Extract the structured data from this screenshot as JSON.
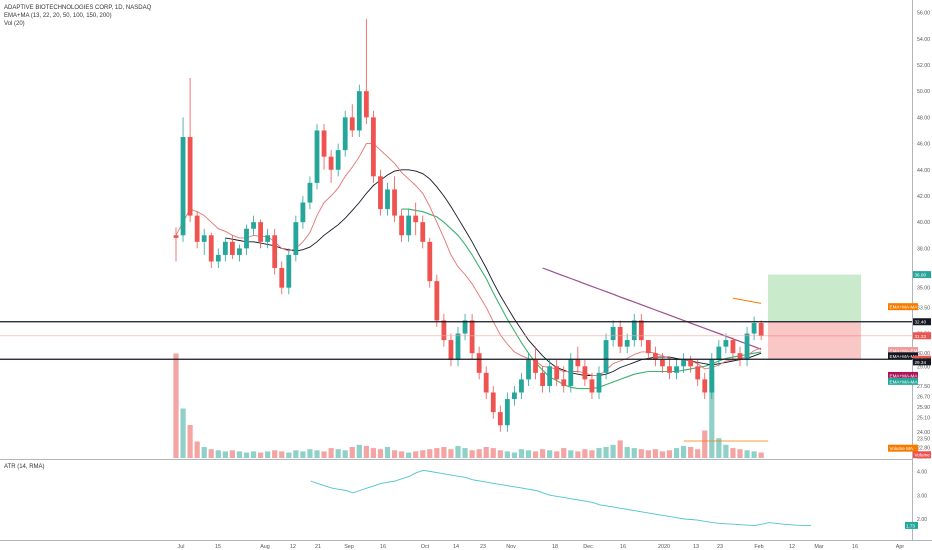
{
  "header": {
    "symbol": "ADAPTIVE BIOTECHNOLOGIES CORP, 1D, NASDAQ",
    "ind1": "EMA+MA (13, 22, 20, 50, 100, 150, 200)",
    "ind2": "Vol (20)"
  },
  "atr": {
    "label": "ATR (14, RMA)",
    "last": "1.73"
  },
  "x_axis": {
    "labels": [
      "Jul",
      "15",
      "Aug",
      "12",
      "21",
      "Sep",
      "16",
      "Oct",
      "14",
      "23",
      "Nov",
      "18",
      "Dec",
      "16",
      "2020",
      "13",
      "23",
      "Feb",
      "12",
      "Mar",
      "16",
      "Apr"
    ]
  },
  "y_axis": {
    "labels": [
      "56.00",
      "54.00",
      "52.00",
      "50.00",
      "48.00",
      "46.00",
      "44.00",
      "42.00",
      "40.00",
      "38.00",
      "36.00",
      "35.00",
      "33.50",
      "32.40",
      "31.50",
      "30.00",
      "29.00",
      "27.50",
      "26.70",
      "25.90",
      "25.10",
      "24.00",
      "23.50",
      "22.80",
      "22.10"
    ],
    "values": [
      56,
      54,
      52,
      50,
      48,
      46,
      44,
      42,
      40,
      38,
      36,
      35,
      33.5,
      32.4,
      31.5,
      30,
      29,
      27.5,
      26.7,
      25.9,
      25.1,
      24,
      23.5,
      22.8,
      22.1
    ],
    "markers": [
      {
        "text": "36.00",
        "value": 36,
        "color": "#26a69a"
      },
      {
        "text": "EMA+MA-MA 4",
        "value": 33.55,
        "color": "#f57c00"
      },
      {
        "text": "32.40",
        "value": 32.4,
        "color": "#131722"
      },
      {
        "text": "31.33",
        "value": 31.33,
        "color": "#ef5350"
      },
      {
        "text": "EMA+MA-EMA 1",
        "value": 30.2,
        "color": "#ef9a9a"
      },
      {
        "text": "EMA+MA-MA 3",
        "value": 29.8,
        "color": "#131722"
      },
      {
        "text": "29.54",
        "value": 29.54,
        "color": "#ef5350"
      },
      {
        "text": "29.34",
        "value": 29.34,
        "color": "#131722"
      },
      {
        "text": "EMA+MA-MA 5",
        "value": 28.3,
        "color": "#ad1457"
      },
      {
        "text": "EMA+MA-MA 2",
        "value": 27.85,
        "color": "#26a69a"
      },
      {
        "text": "Volume MA",
        "value": 22.75,
        "color": "#f57c00"
      },
      {
        "text": "Volume",
        "value": 22.25,
        "color": "#ef5350"
      }
    ]
  },
  "atr_axis": {
    "labels": [
      "4.00",
      "3.00",
      "2.00"
    ],
    "values": [
      4,
      3,
      2
    ]
  },
  "chart_data": {
    "type": "candlestick",
    "title": "ADAPTIVE BIOTECHNOLOGIES CORP, 1D, NASDAQ",
    "ylim": [
      22,
      56.5
    ],
    "levels": {
      "resistance": 32.4,
      "support": 29.54,
      "entry": 31.33,
      "target": 36.0
    },
    "candles": [
      [
        39.0,
        39.6,
        37.0,
        38.8
      ],
      [
        39.0,
        48.0,
        38.5,
        46.5
      ],
      [
        46.5,
        51.0,
        40.0,
        40.5
      ],
      [
        40.5,
        40.8,
        38.0,
        38.5
      ],
      [
        38.5,
        39.5,
        37.5,
        39.0
      ],
      [
        39.0,
        39.2,
        36.5,
        37.0
      ],
      [
        37.0,
        38.0,
        36.5,
        37.5
      ],
      [
        37.5,
        38.8,
        37.0,
        38.5
      ],
      [
        38.5,
        39.0,
        37.2,
        37.5
      ],
      [
        37.5,
        38.3,
        37.0,
        38.0
      ],
      [
        38.0,
        39.8,
        37.5,
        39.5
      ],
      [
        39.5,
        40.5,
        39.0,
        40.0
      ],
      [
        40.0,
        40.2,
        38.0,
        38.5
      ],
      [
        38.5,
        39.5,
        38.0,
        39.0
      ],
      [
        39.0,
        39.5,
        36.0,
        36.5
      ],
      [
        36.5,
        37.0,
        34.5,
        35.0
      ],
      [
        35.0,
        38.0,
        34.5,
        37.5
      ],
      [
        37.5,
        40.5,
        37.0,
        40.0
      ],
      [
        40.0,
        42.0,
        39.5,
        41.5
      ],
      [
        41.5,
        43.5,
        41.0,
        43.0
      ],
      [
        43.0,
        47.5,
        42.5,
        47.0
      ],
      [
        47.0,
        47.5,
        44.0,
        45.0
      ],
      [
        45.0,
        45.5,
        43.0,
        44.0
      ],
      [
        44.0,
        46.0,
        43.5,
        45.5
      ],
      [
        45.5,
        48.5,
        45.0,
        48.0
      ],
      [
        48.0,
        49.0,
        46.5,
        47.0
      ],
      [
        47.0,
        50.5,
        46.5,
        50.0
      ],
      [
        50.0,
        55.5,
        47.5,
        48.0
      ],
      [
        48.0,
        48.5,
        43.0,
        43.5
      ],
      [
        43.5,
        44.0,
        40.5,
        41.0
      ],
      [
        41.0,
        43.0,
        40.5,
        42.5
      ],
      [
        42.5,
        43.5,
        40.0,
        40.5
      ],
      [
        40.5,
        41.0,
        38.5,
        39.0
      ],
      [
        39.0,
        41.0,
        38.5,
        40.5
      ],
      [
        40.5,
        41.5,
        39.0,
        40.0
      ],
      [
        40.0,
        40.5,
        38.0,
        38.5
      ],
      [
        38.5,
        38.8,
        35.0,
        35.5
      ],
      [
        35.5,
        36.0,
        32.0,
        32.5
      ],
      [
        32.5,
        33.0,
        30.5,
        31.0
      ],
      [
        31.0,
        31.5,
        29.0,
        29.5
      ],
      [
        29.5,
        32.0,
        29.0,
        31.5
      ],
      [
        31.5,
        33.0,
        31.0,
        32.5
      ],
      [
        32.5,
        33.0,
        29.5,
        30.0
      ],
      [
        30.0,
        30.5,
        28.0,
        28.5
      ],
      [
        28.5,
        29.0,
        26.5,
        27.0
      ],
      [
        27.0,
        27.5,
        25.0,
        25.5
      ],
      [
        25.5,
        26.0,
        24.0,
        24.5
      ],
      [
        24.5,
        27.0,
        24.0,
        26.5
      ],
      [
        26.5,
        27.5,
        26.0,
        27.0
      ],
      [
        27.0,
        28.5,
        26.5,
        28.0
      ],
      [
        28.0,
        30.0,
        27.5,
        29.5
      ],
      [
        29.5,
        30.5,
        28.0,
        28.5
      ],
      [
        28.5,
        29.0,
        27.0,
        27.5
      ],
      [
        27.5,
        29.5,
        27.0,
        29.0
      ],
      [
        29.0,
        29.5,
        27.5,
        28.0
      ],
      [
        28.0,
        29.0,
        27.0,
        27.5
      ],
      [
        27.5,
        30.0,
        27.0,
        29.5
      ],
      [
        29.5,
        30.5,
        28.5,
        29.0
      ],
      [
        29.0,
        29.5,
        27.5,
        28.0
      ],
      [
        28.0,
        28.5,
        26.5,
        27.0
      ],
      [
        27.0,
        29.0,
        26.5,
        28.5
      ],
      [
        28.5,
        31.5,
        28.0,
        31.0
      ],
      [
        31.0,
        32.5,
        30.5,
        32.0
      ],
      [
        32.0,
        32.5,
        30.0,
        30.5
      ],
      [
        30.5,
        31.5,
        30.0,
        31.0
      ],
      [
        31.0,
        33.0,
        30.5,
        32.5
      ],
      [
        32.5,
        33.0,
        30.5,
        31.0
      ],
      [
        31.0,
        31.0,
        29.5,
        30.0
      ],
      [
        30.0,
        30.5,
        29.0,
        29.5
      ],
      [
        29.5,
        30.0,
        28.5,
        29.0
      ],
      [
        29.0,
        29.5,
        28.0,
        28.5
      ],
      [
        28.5,
        29.5,
        28.0,
        29.0
      ],
      [
        29.0,
        30.0,
        28.5,
        29.5
      ],
      [
        29.5,
        29.8,
        28.5,
        29.0
      ],
      [
        29.0,
        29.5,
        27.5,
        28.0
      ],
      [
        28.0,
        28.5,
        26.5,
        27.0
      ],
      [
        27.0,
        30.0,
        26.5,
        29.5
      ],
      [
        29.5,
        31.0,
        29.0,
        30.5
      ],
      [
        30.5,
        31.5,
        30.0,
        31.0
      ],
      [
        31.0,
        31.2,
        29.5,
        30.0
      ],
      [
        30.0,
        30.5,
        29.0,
        29.5
      ],
      [
        29.5,
        32.0,
        29.0,
        31.5
      ],
      [
        31.5,
        32.8,
        31.0,
        32.3
      ],
      [
        32.3,
        32.5,
        31.0,
        31.33
      ]
    ],
    "volume": [
      0.95,
      0.45,
      0.3,
      0.15,
      0.1,
      0.08,
      0.07,
      0.06,
      0.07,
      0.06,
      0.05,
      0.06,
      0.05,
      0.06,
      0.07,
      0.06,
      0.05,
      0.07,
      0.06,
      0.08,
      0.07,
      0.06,
      0.09,
      0.08,
      0.07,
      0.1,
      0.12,
      0.11,
      0.09,
      0.08,
      0.1,
      0.07,
      0.06,
      0.05,
      0.06,
      0.07,
      0.08,
      0.09,
      0.1,
      0.08,
      0.11,
      0.09,
      0.07,
      0.08,
      0.1,
      0.09,
      0.07,
      0.06,
      0.05,
      0.08,
      0.07,
      0.06,
      0.08,
      0.07,
      0.06,
      0.09,
      0.07,
      0.06,
      0.08,
      0.07,
      0.09,
      0.1,
      0.12,
      0.16,
      0.1,
      0.09,
      0.08,
      0.07,
      0.08,
      0.06,
      0.07,
      0.09,
      0.11,
      0.1,
      0.08,
      0.25,
      0.8,
      0.18,
      0.12,
      0.09,
      0.08,
      0.07,
      0.06,
      0.05
    ],
    "ema13": [
      39.0,
      40.0,
      41.0,
      40.8,
      40.5,
      40.0,
      39.5,
      39.3,
      39.0,
      38.8,
      38.8,
      39.0,
      38.9,
      38.9,
      38.5,
      38.0,
      37.8,
      38.0,
      38.5,
      39.2,
      40.5,
      41.5,
      42.0,
      42.6,
      43.5,
      44.2,
      45.0,
      46.0,
      46.0,
      45.5,
      45.0,
      44.5,
      43.8,
      43.3,
      42.8,
      42.2,
      41.2,
      40.0,
      38.8,
      37.5,
      36.6,
      36.0,
      35.3,
      34.4,
      33.5,
      32.4,
      31.4,
      30.7,
      30.1,
      29.8,
      29.6,
      29.4,
      29.0,
      28.9,
      28.8,
      28.6,
      28.6,
      28.6,
      28.5,
      28.3,
      28.3,
      28.7,
      29.2,
      29.4,
      29.6,
      29.9,
      30.1,
      30.1,
      30.0,
      29.8,
      29.6,
      29.5,
      29.5,
      29.4,
      29.2,
      28.8,
      28.9,
      29.1,
      29.4,
      29.5,
      29.5,
      29.8,
      30.2,
      30.4
    ],
    "ma22": [
      null,
      null,
      null,
      null,
      null,
      null,
      null,
      38.8,
      38.7,
      38.6,
      38.5,
      38.5,
      38.4,
      38.3,
      38.2,
      38.0,
      37.9,
      37.8,
      37.9,
      38.1,
      38.5,
      39.0,
      39.4,
      39.8,
      40.3,
      40.9,
      41.5,
      42.2,
      42.8,
      43.2,
      43.6,
      43.9,
      44.0,
      44.0,
      43.9,
      43.7,
      43.3,
      42.7,
      42.0,
      41.2,
      40.3,
      39.4,
      38.5,
      37.5,
      36.5,
      35.4,
      34.4,
      33.5,
      32.6,
      31.8,
      31.0,
      30.4,
      29.8,
      29.3,
      28.9,
      28.7,
      28.5,
      28.4,
      28.3,
      28.3,
      28.3,
      28.4,
      28.6,
      28.9,
      29.1,
      29.3,
      29.5,
      29.6,
      29.7,
      29.7,
      29.7,
      29.6,
      29.5,
      29.4,
      29.3,
      29.2,
      29.1,
      29.2,
      29.3,
      29.4,
      29.5,
      29.6,
      29.8,
      30.0
    ],
    "ma50": [
      null,
      null,
      null,
      null,
      null,
      null,
      null,
      null,
      null,
      null,
      null,
      null,
      null,
      null,
      null,
      null,
      null,
      null,
      null,
      null,
      null,
      null,
      null,
      null,
      null,
      null,
      null,
      null,
      null,
      null,
      null,
      null,
      41.0,
      41.0,
      40.9,
      40.8,
      40.6,
      40.4,
      40.0,
      39.5,
      39.0,
      38.3,
      37.5,
      36.6,
      35.7,
      34.6,
      33.6,
      32.6,
      31.7,
      30.8,
      30.0,
      29.3,
      28.7,
      28.2,
      27.9,
      27.6,
      27.4,
      27.3,
      27.3,
      27.3,
      27.4,
      27.6,
      27.8,
      28.0,
      28.2,
      28.4,
      28.5,
      28.6,
      28.6,
      28.6,
      28.6,
      28.6,
      28.7,
      28.8,
      28.9,
      29.0,
      29.2,
      29.4,
      29.6,
      29.7,
      29.8,
      29.9,
      30.0,
      30.1
    ],
    "ma100": [
      null,
      null,
      null,
      null,
      null,
      null,
      null,
      null,
      null,
      null,
      null,
      null,
      null,
      null,
      null,
      null,
      null,
      null,
      null,
      null,
      null,
      null,
      null,
      null,
      null,
      null,
      null,
      null,
      null,
      null,
      null,
      null,
      null,
      null,
      null,
      null,
      null,
      null,
      null,
      null,
      null,
      null,
      null,
      null,
      null,
      null,
      null,
      null,
      null,
      null,
      null,
      null,
      36.5,
      36.3,
      36.1,
      35.9,
      35.7,
      35.5,
      35.3,
      35.1,
      34.9,
      34.7,
      34.5,
      34.3,
      34.1,
      33.9,
      33.7,
      33.5,
      33.3,
      33.1,
      32.9,
      32.7,
      32.5,
      32.3,
      32.1,
      31.9,
      31.7,
      31.5,
      31.3,
      31.1,
      30.9,
      30.7,
      30.5,
      30.3
    ],
    "ma150": [
      null,
      null,
      null,
      null,
      null,
      null,
      null,
      null,
      null,
      null,
      null,
      null,
      null,
      null,
      null,
      null,
      null,
      null,
      null,
      null,
      null,
      null,
      null,
      null,
      null,
      null,
      null,
      null,
      null,
      null,
      null,
      null,
      null,
      null,
      null,
      null,
      null,
      null,
      null,
      null,
      null,
      null,
      null,
      null,
      null,
      null,
      null,
      null,
      null,
      null,
      null,
      null,
      null,
      null,
      null,
      null,
      null,
      null,
      null,
      null,
      null,
      null,
      null,
      null,
      null,
      null,
      null,
      null,
      null,
      null,
      null,
      null,
      null,
      null,
      null,
      null,
      null,
      null,
      null,
      34.2,
      34.1,
      34.0,
      33.9,
      33.8
    ],
    "atr": [
      null,
      null,
      null,
      null,
      null,
      null,
      null,
      null,
      null,
      null,
      null,
      null,
      3.6,
      3.5,
      3.4,
      3.3,
      3.25,
      3.2,
      3.1,
      3.2,
      3.3,
      3.4,
      3.5,
      3.55,
      3.6,
      3.7,
      3.8,
      3.95,
      4.05,
      4.0,
      3.95,
      3.9,
      3.85,
      3.8,
      3.75,
      3.65,
      3.6,
      3.55,
      3.5,
      3.45,
      3.4,
      3.35,
      3.3,
      3.25,
      3.2,
      3.1,
      3.0,
      2.95,
      2.9,
      2.85,
      2.8,
      2.75,
      2.7,
      2.6,
      2.55,
      2.5,
      2.45,
      2.4,
      2.35,
      2.3,
      2.25,
      2.2,
      2.15,
      2.1,
      2.05,
      2.0,
      1.98,
      1.95,
      1.9,
      1.85,
      1.82,
      1.8,
      1.78,
      1.76,
      1.74,
      1.72,
      1.78,
      1.85,
      1.82,
      1.78,
      1.76,
      1.74,
      1.73,
      1.73
    ]
  }
}
